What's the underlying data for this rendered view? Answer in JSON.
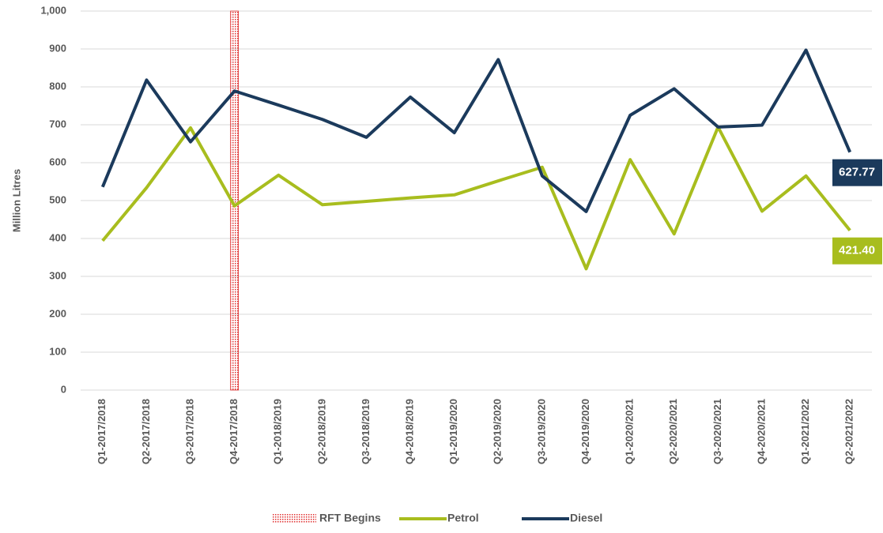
{
  "chart_data": {
    "type": "line",
    "y_label": "Million Litres",
    "categories": [
      "Q1-2017/2018",
      "Q2-2017/2018",
      "Q3-2017/2018",
      "Q4-2017/2018",
      "Q1-2018/2019",
      "Q2-2018/2019",
      "Q3-2018/2019",
      "Q4-2018/2019",
      "Q1-2019/2020",
      "Q2-2019/2020",
      "Q3-2019/2020",
      "Q4-2019/2020",
      "Q1-2020/2021",
      "Q2-2020/2021",
      "Q3-2020/2021",
      "Q4-2020/2021",
      "Q1-2021/2022",
      "Q2-2021/2022"
    ],
    "series": [
      {
        "name": "Petrol",
        "color": "#a8bd1e",
        "values": [
          394,
          534,
          692,
          486,
          567,
          489,
          498,
          507,
          515,
          552,
          588,
          320,
          608,
          412,
          694,
          472,
          565,
          421.4
        ],
        "value_labels": [
          null,
          null,
          null,
          null,
          null,
          null,
          null,
          null,
          null,
          null,
          null,
          null,
          null,
          null,
          null,
          null,
          null,
          "421.40"
        ]
      },
      {
        "name": "Diesel",
        "color": "#1b3a5c",
        "values": [
          536,
          818,
          655,
          789,
          752,
          714,
          667,
          773,
          679,
          872,
          565,
          471,
          725,
          795,
          694,
          699,
          897,
          627.77
        ],
        "value_labels": [
          null,
          null,
          null,
          null,
          null,
          null,
          null,
          null,
          null,
          null,
          null,
          null,
          null,
          null,
          null,
          null,
          null,
          "627.77"
        ]
      }
    ],
    "marker": {
      "name": "RFT Begins",
      "category": "Q4-2017/2018",
      "color": "#e03030"
    },
    "ylim": [
      0,
      1000
    ],
    "yticks": [
      0,
      100,
      200,
      300,
      400,
      500,
      600,
      700,
      800,
      900,
      {
        "value": 1000,
        "label": "1,000"
      }
    ],
    "grid": true
  }
}
